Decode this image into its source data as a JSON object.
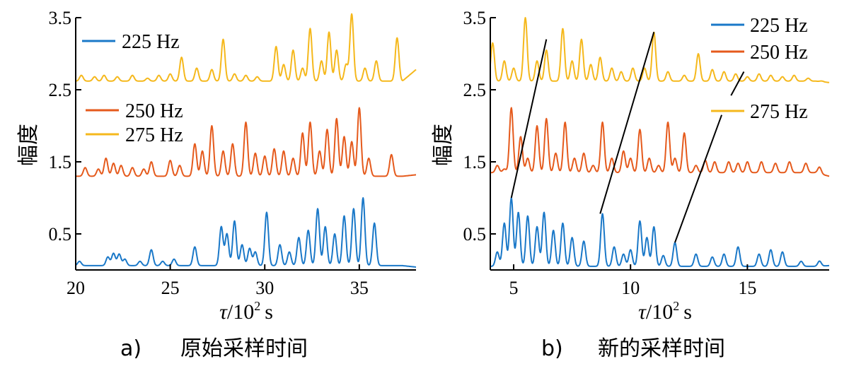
{
  "chart_data": [
    {
      "type": "line",
      "caption_letter": "a)",
      "caption_text": "原始采样时间",
      "xlabel_symbol": "τ",
      "xlabel_unit": "/10",
      "xlabel_exp": "2",
      "xlabel_s": "s",
      "ylabel": "幅度",
      "xlim": [
        20,
        38
      ],
      "ylim": [
        0,
        3.5
      ],
      "xticks": [
        20,
        25,
        30,
        35
      ],
      "yticks": [
        0.5,
        1.5,
        2.5,
        3.5
      ],
      "colors": {
        "225 Hz": "#1a78c8",
        "250 Hz": "#e55a1c",
        "275 Hz": "#f5b81c"
      },
      "series": [
        {
          "name": "225 Hz",
          "base": 0.06,
          "peaks": [
            [
              20.2,
              0.12
            ],
            [
              21.7,
              0.18
            ],
            [
              22.0,
              0.23
            ],
            [
              22.3,
              0.22
            ],
            [
              22.6,
              0.15
            ],
            [
              23.4,
              0.12
            ],
            [
              24.0,
              0.28
            ],
            [
              24.6,
              0.12
            ],
            [
              25.2,
              0.15
            ],
            [
              26.3,
              0.32
            ],
            [
              27.7,
              0.6
            ],
            [
              28.0,
              0.5
            ],
            [
              28.4,
              0.68
            ],
            [
              28.8,
              0.35
            ],
            [
              29.2,
              0.3
            ],
            [
              29.5,
              0.25
            ],
            [
              30.1,
              0.8
            ],
            [
              30.8,
              0.35
            ],
            [
              31.3,
              0.25
            ],
            [
              31.8,
              0.45
            ],
            [
              32.3,
              0.55
            ],
            [
              32.8,
              0.85
            ],
            [
              33.2,
              0.6
            ],
            [
              33.7,
              0.5
            ],
            [
              34.2,
              0.75
            ],
            [
              34.7,
              0.85
            ],
            [
              35.2,
              1.0
            ],
            [
              35.8,
              0.65
            ]
          ],
          "tail": 0.04
        },
        {
          "name": "250 Hz",
          "base": 1.3,
          "peaks": [
            [
              20.5,
              1.42
            ],
            [
              21.2,
              1.4
            ],
            [
              21.6,
              1.55
            ],
            [
              22.0,
              1.48
            ],
            [
              22.4,
              1.45
            ],
            [
              23.0,
              1.42
            ],
            [
              23.6,
              1.4
            ],
            [
              24.0,
              1.5
            ],
            [
              25.0,
              1.52
            ],
            [
              25.5,
              1.45
            ],
            [
              26.3,
              1.75
            ],
            [
              26.7,
              1.65
            ],
            [
              27.2,
              2.0
            ],
            [
              27.8,
              1.65
            ],
            [
              28.3,
              1.75
            ],
            [
              29.0,
              2.05
            ],
            [
              29.5,
              1.62
            ],
            [
              30.0,
              1.58
            ],
            [
              30.5,
              1.68
            ],
            [
              31.0,
              1.65
            ],
            [
              31.5,
              1.55
            ],
            [
              32.0,
              1.9
            ],
            [
              32.4,
              2.05
            ],
            [
              32.9,
              1.65
            ],
            [
              33.3,
              1.95
            ],
            [
              33.8,
              2.1
            ],
            [
              34.2,
              1.85
            ],
            [
              34.6,
              1.78
            ],
            [
              35.0,
              2.25
            ],
            [
              35.5,
              1.55
            ],
            [
              36.7,
              1.6
            ]
          ],
          "tail": 1.32
        },
        {
          "name": "275 Hz",
          "base": 2.62,
          "peaks": [
            [
              20.3,
              2.7
            ],
            [
              21.0,
              2.68
            ],
            [
              21.5,
              2.7
            ],
            [
              22.2,
              2.68
            ],
            [
              23.0,
              2.7
            ],
            [
              23.8,
              2.66
            ],
            [
              24.4,
              2.7
            ],
            [
              25.0,
              2.72
            ],
            [
              25.6,
              2.95
            ],
            [
              26.4,
              2.8
            ],
            [
              27.2,
              2.78
            ],
            [
              27.8,
              3.2
            ],
            [
              28.4,
              2.72
            ],
            [
              29.0,
              2.7
            ],
            [
              29.6,
              2.68
            ],
            [
              30.6,
              3.1
            ],
            [
              31.0,
              2.85
            ],
            [
              31.5,
              3.05
            ],
            [
              32.0,
              2.8
            ],
            [
              32.4,
              3.35
            ],
            [
              33.0,
              2.9
            ],
            [
              33.4,
              3.3
            ],
            [
              33.8,
              3.05
            ],
            [
              34.3,
              2.85
            ],
            [
              34.6,
              3.55
            ],
            [
              35.3,
              2.8
            ],
            [
              35.9,
              2.9
            ],
            [
              37.0,
              3.22
            ]
          ],
          "tail": 2.78
        }
      ]
    },
    {
      "type": "line",
      "caption_letter": "b)",
      "caption_text": "新的采样时间",
      "xlabel_symbol": "τ",
      "xlabel_unit": "/10",
      "xlabel_exp": "2",
      "xlabel_s": "s",
      "xlim": [
        4,
        18.5
      ],
      "ylim": [
        0,
        3.5
      ],
      "xticks": [
        5,
        10,
        15
      ],
      "yticks": [
        0.5,
        1.5,
        2.5,
        3.5
      ],
      "colors": {
        "225 Hz": "#1a78c8",
        "250 Hz": "#e55a1c",
        "275 Hz": "#f5b81c"
      },
      "series": [
        {
          "name": "225 Hz",
          "base": 0.05,
          "peaks": [
            [
              4.3,
              0.25
            ],
            [
              4.6,
              0.65
            ],
            [
              4.9,
              1.0
            ],
            [
              5.2,
              0.8
            ],
            [
              5.6,
              0.75
            ],
            [
              6.0,
              0.6
            ],
            [
              6.3,
              0.8
            ],
            [
              6.7,
              0.55
            ],
            [
              7.1,
              0.65
            ],
            [
              7.5,
              0.45
            ],
            [
              8.0,
              0.4
            ],
            [
              8.8,
              0.78
            ],
            [
              9.3,
              0.32
            ],
            [
              9.7,
              0.22
            ],
            [
              10.0,
              0.28
            ],
            [
              10.4,
              0.68
            ],
            [
              10.7,
              0.45
            ],
            [
              11.0,
              0.6
            ],
            [
              11.4,
              0.2
            ],
            [
              11.9,
              0.38
            ],
            [
              12.8,
              0.22
            ],
            [
              13.5,
              0.18
            ],
            [
              14.0,
              0.22
            ],
            [
              14.6,
              0.32
            ],
            [
              15.5,
              0.22
            ],
            [
              16.0,
              0.28
            ],
            [
              16.5,
              0.25
            ],
            [
              17.3,
              0.12
            ],
            [
              18.1,
              0.15
            ]
          ],
          "tail": 0.06
        },
        {
          "name": "250 Hz",
          "base": 1.35,
          "peaks": [
            [
              4.3,
              1.45
            ],
            [
              4.6,
              1.4
            ],
            [
              4.9,
              2.25
            ],
            [
              5.3,
              1.85
            ],
            [
              5.6,
              1.55
            ],
            [
              6.0,
              2.0
            ],
            [
              6.4,
              2.1
            ],
            [
              6.8,
              1.62
            ],
            [
              7.2,
              2.05
            ],
            [
              7.6,
              1.55
            ],
            [
              8.0,
              1.62
            ],
            [
              8.4,
              1.45
            ],
            [
              8.8,
              2.05
            ],
            [
              9.2,
              1.55
            ],
            [
              9.7,
              1.65
            ],
            [
              10.0,
              1.55
            ],
            [
              10.4,
              1.95
            ],
            [
              10.8,
              1.55
            ],
            [
              11.2,
              1.45
            ],
            [
              11.6,
              2.05
            ],
            [
              11.9,
              1.55
            ],
            [
              12.3,
              1.9
            ],
            [
              12.8,
              1.45
            ],
            [
              13.2,
              1.52
            ],
            [
              13.6,
              1.5
            ],
            [
              14.2,
              1.5
            ],
            [
              14.6,
              1.48
            ],
            [
              15.0,
              1.5
            ],
            [
              15.6,
              1.5
            ],
            [
              16.2,
              1.48
            ],
            [
              16.8,
              1.5
            ],
            [
              17.5,
              1.48
            ],
            [
              18.1,
              1.48
            ]
          ],
          "tail": 1.3
        },
        {
          "name": "275 Hz",
          "base": 2.62,
          "peaks": [
            [
              4.1,
              3.15
            ],
            [
              4.6,
              2.9
            ],
            [
              5.0,
              2.8
            ],
            [
              5.5,
              3.5
            ],
            [
              6.0,
              2.9
            ],
            [
              6.4,
              3.05
            ],
            [
              7.1,
              3.35
            ],
            [
              7.5,
              2.9
            ],
            [
              7.9,
              3.2
            ],
            [
              8.3,
              2.85
            ],
            [
              8.7,
              2.95
            ],
            [
              9.2,
              2.8
            ],
            [
              9.6,
              2.75
            ],
            [
              10.1,
              2.8
            ],
            [
              10.6,
              2.8
            ],
            [
              11.0,
              3.3
            ],
            [
              11.6,
              2.75
            ],
            [
              12.3,
              2.7
            ],
            [
              12.9,
              3.0
            ],
            [
              13.5,
              2.78
            ],
            [
              14.0,
              2.75
            ],
            [
              14.5,
              2.72
            ],
            [
              15.0,
              2.68
            ],
            [
              15.5,
              2.72
            ],
            [
              16.0,
              2.7
            ],
            [
              16.5,
              2.68
            ],
            [
              17.0,
              2.7
            ],
            [
              17.6,
              2.66
            ],
            [
              18.2,
              2.64
            ]
          ],
          "tail": 2.6
        }
      ],
      "annotation_lines": [
        [
          [
            4.9,
            1.0
          ],
          [
            6.4,
            3.2
          ]
        ],
        [
          [
            8.7,
            0.78
          ],
          [
            11.0,
            3.3
          ]
        ],
        [
          [
            11.9,
            0.38
          ],
          [
            13.9,
            2.15
          ]
        ],
        [
          [
            14.3,
            2.42
          ],
          [
            14.85,
            2.75
          ]
        ]
      ]
    }
  ]
}
